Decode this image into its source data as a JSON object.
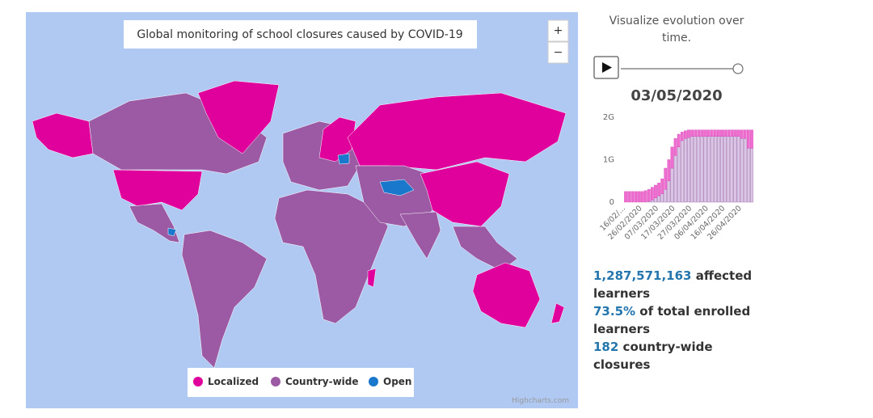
{
  "map": {
    "title": "Global monitoring of school closures caused by COVID-19",
    "zoom_in": "+",
    "zoom_out": "−",
    "legend": [
      {
        "label": "Localized",
        "color": "#e0009b"
      },
      {
        "label": "Country-wide",
        "color": "#9b5aa3"
      },
      {
        "label": "Open",
        "color": "#1a78cc"
      }
    ],
    "credit": "Highcharts.com"
  },
  "sidebar": {
    "heading": "Visualize evolution over time.",
    "date": "03/05/2020",
    "stats": [
      {
        "value": "1,287,571,163",
        "text": "affected learners"
      },
      {
        "value": "73.5%",
        "text": "of total enrolled learners"
      },
      {
        "value": "182",
        "text": "country-wide closures"
      }
    ]
  },
  "chart_data": {
    "type": "bar",
    "stacked": true,
    "categories": [
      "16/02/...",
      null,
      null,
      null,
      null,
      "26/02/2020",
      null,
      null,
      null,
      null,
      "07/03/2020",
      null,
      null,
      null,
      null,
      "17/03/2020",
      null,
      null,
      null,
      null,
      "27/03/2020",
      null,
      null,
      null,
      null,
      "06/04/2020",
      null,
      null,
      null,
      null,
      "16/04/2020",
      null,
      null,
      null,
      null,
      "26/04/2020",
      null,
      null,
      null
    ],
    "series": [
      {
        "name": "Country-wide",
        "color": "#dcc6e6",
        "values": [
          0,
          0,
          0,
          0,
          0,
          0,
          0,
          20000000,
          50000000,
          100000000,
          150000000,
          200000000,
          300000000,
          500000000,
          800000000,
          1100000000,
          1300000000,
          1450000000,
          1500000000,
          1520000000,
          1550000000,
          1550000000,
          1550000000,
          1550000000,
          1550000000,
          1550000000,
          1550000000,
          1550000000,
          1550000000,
          1550000000,
          1550000000,
          1550000000,
          1550000000,
          1550000000,
          1550000000,
          1500000000,
          1500000000,
          1270000000,
          1270000000
        ]
      },
      {
        "name": "Localized",
        "color": "#ee6fd0",
        "values": [
          250000000,
          250000000,
          250000000,
          250000000,
          250000000,
          250000000,
          270000000,
          280000000,
          300000000,
          300000000,
          300000000,
          350000000,
          500000000,
          500000000,
          500000000,
          400000000,
          300000000,
          200000000,
          180000000,
          180000000,
          150000000,
          150000000,
          150000000,
          150000000,
          150000000,
          150000000,
          150000000,
          150000000,
          150000000,
          150000000,
          150000000,
          150000000,
          150000000,
          150000000,
          150000000,
          200000000,
          200000000,
          430000000,
          430000000
        ]
      }
    ],
    "ylim": [
      0,
      2000000000
    ],
    "yticks": [
      0,
      {
        "value": 1000000000,
        "label": "1G"
      },
      {
        "value": 2000000000,
        "label": "2G"
      }
    ]
  }
}
